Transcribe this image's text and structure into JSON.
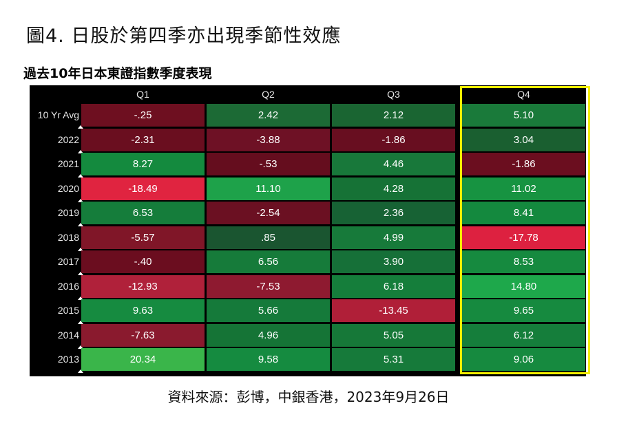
{
  "title": "圖4. 日股於第四季亦出現季節性效應",
  "subtitle": "過去10年日本東證指數季度表現",
  "source": "資料來源：彭博，中銀香港，2023年9月26日",
  "chart_data": {
    "type": "heatmap",
    "columns": [
      "Q1",
      "Q2",
      "Q3",
      "Q4"
    ],
    "rows": [
      "10 Yr Avg",
      "2022",
      "2021",
      "2020",
      "2019",
      "2018",
      "2017",
      "2016",
      "2015",
      "2014",
      "2013"
    ],
    "values": [
      [
        "-.25",
        "2.42",
        "2.12",
        "5.10"
      ],
      [
        "-2.31",
        "-3.88",
        "-1.86",
        "3.04"
      ],
      [
        "8.27",
        "-.53",
        "4.46",
        "-1.86"
      ],
      [
        "-18.49",
        "11.10",
        "4.28",
        "11.02"
      ],
      [
        "6.53",
        "-2.54",
        "2.36",
        "8.41"
      ],
      [
        "-5.57",
        ".85",
        "4.99",
        "-17.78"
      ],
      [
        "-.40",
        "6.56",
        "3.90",
        "8.53"
      ],
      [
        "-12.93",
        "-7.53",
        "6.18",
        "14.80"
      ],
      [
        "9.63",
        "5.66",
        "-13.45",
        "9.65"
      ],
      [
        "-7.63",
        "4.96",
        "5.05",
        "6.12"
      ],
      [
        "20.34",
        "9.58",
        "5.31",
        "9.06"
      ]
    ],
    "colors": [
      [
        "#6e0f20",
        "#1c6a35",
        "#1a6532",
        "#1a7a3a"
      ],
      [
        "#6a0e1f",
        "#6e1125",
        "#680e20",
        "#1a5f30"
      ],
      [
        "#148a3e",
        "#650d1e",
        "#18783a",
        "#6b0e1f"
      ],
      [
        "#e02440",
        "#1ea24a",
        "#167236",
        "#179341"
      ],
      [
        "#157d3b",
        "#6b1022",
        "#176234",
        "#14893e"
      ],
      [
        "#801628",
        "#1a5530",
        "#177a3a",
        "#dd2140"
      ],
      [
        "#6b0d1f",
        "#167b3a",
        "#167038",
        "#168a3f"
      ],
      [
        "#b0213a",
        "#8e1a30",
        "#157e3b",
        "#1ea84b"
      ],
      [
        "#168b40",
        "#157a3a",
        "#b01f38",
        "#168a3f"
      ],
      [
        "#8a1a2e",
        "#157436",
        "#167838",
        "#157e3b"
      ],
      [
        "#3ab54a",
        "#158b40",
        "#167a3a",
        "#168a3f"
      ]
    ],
    "highlight_column": "Q4",
    "highlight_color": "#f4ee00"
  }
}
